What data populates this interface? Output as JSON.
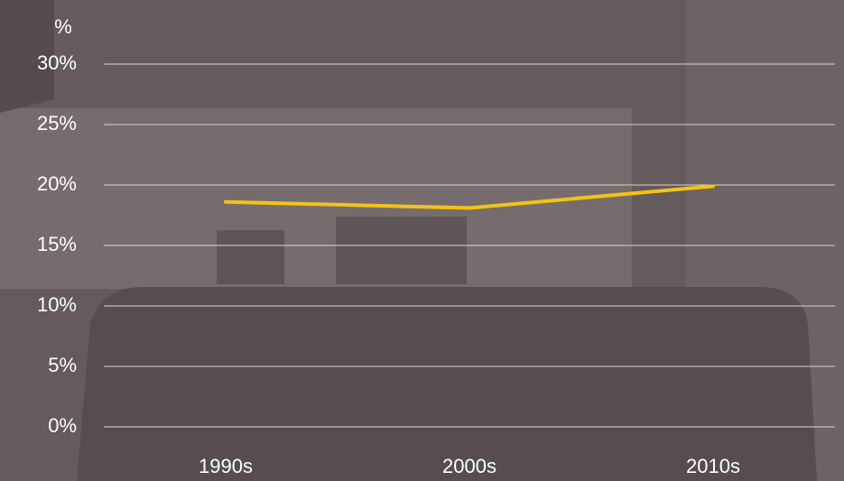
{
  "chart_data": {
    "type": "line",
    "y_label": "%",
    "categories": [
      "1990s",
      "2000s",
      "2010s"
    ],
    "series": [
      {
        "color": "#f2c314",
        "values": [
          18.6,
          18.1,
          19.9
        ]
      }
    ],
    "ylim": [
      0,
      30
    ],
    "yticks": [
      {
        "value": 0,
        "label": "0%"
      },
      {
        "value": 5,
        "label": "5%"
      },
      {
        "value": 10,
        "label": "10%"
      },
      {
        "value": 15,
        "label": "15%"
      },
      {
        "value": 20,
        "label": "20%"
      },
      {
        "value": 25,
        "label": "25%"
      },
      {
        "value": 30,
        "label": "30%"
      }
    ],
    "grid": true
  }
}
